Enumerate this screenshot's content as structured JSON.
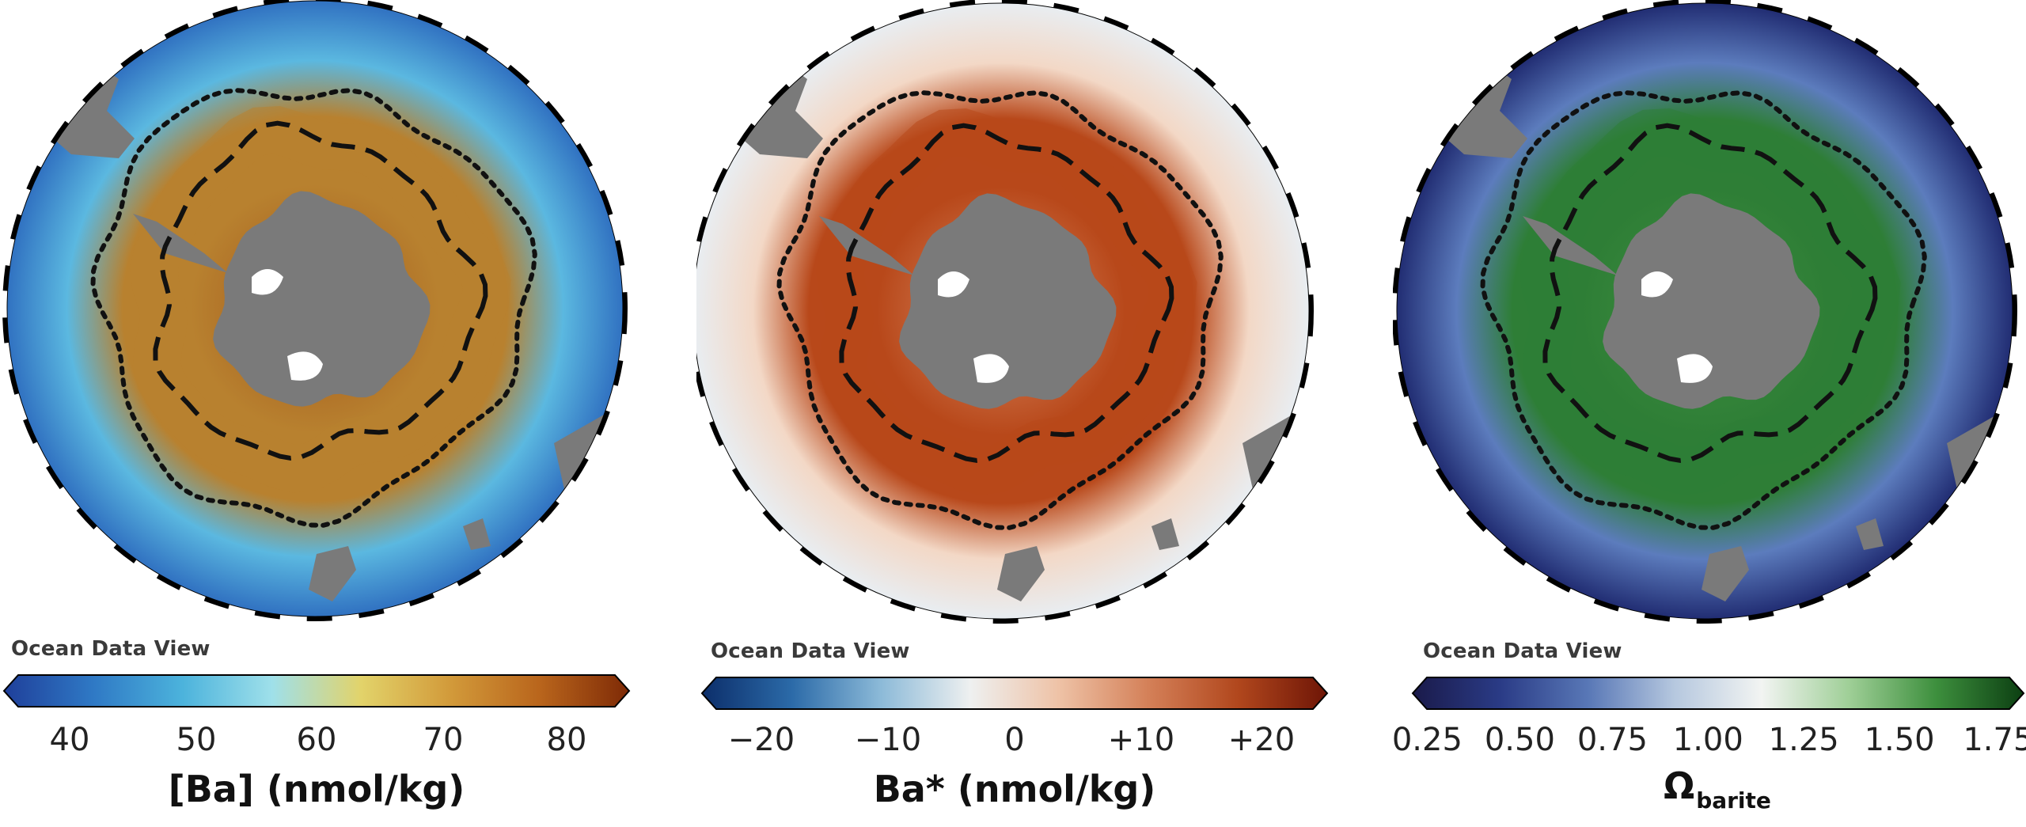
{
  "panels": [
    {
      "id": "ba",
      "watermark": "Ocean Data View",
      "colorbar": {
        "title": "[Ba] (nmol/kg)",
        "title_sub": "",
        "ticks": [
          "40",
          "50",
          "60",
          "70",
          "80"
        ],
        "colors": [
          "#1f3f9a",
          "#2f79c5",
          "#4cb3dc",
          "#9fe0ea",
          "#e2d36a",
          "#d29a3a",
          "#b9651c",
          "#7e2a06"
        ]
      },
      "map_colors": {
        "outer": "#2f6fc0",
        "mid": "#5bb8e0",
        "inner": "#b8812f",
        "core": "#a2561c"
      }
    },
    {
      "id": "bastar",
      "watermark": "Ocean Data View",
      "colorbar": {
        "title": "Ba* (nmol/kg)",
        "title_sub": "",
        "ticks": [
          "−20",
          "−10",
          "0",
          "+10",
          "+20"
        ],
        "colors": [
          "#0c2e6a",
          "#2b6aa8",
          "#8cbad8",
          "#eef0f0",
          "#eec2a6",
          "#d48058",
          "#b1471d",
          "#6e1506"
        ]
      },
      "map_colors": {
        "outer": "#e8eef3",
        "mid": "#f3d8c6",
        "inner": "#b8481a",
        "core": "#d88c66"
      }
    },
    {
      "id": "omega",
      "watermark": "Ocean Data View",
      "colorbar": {
        "title": "Ω",
        "title_sub": "barite",
        "ticks": [
          "0.25",
          "0.50",
          "0.75",
          "1.00",
          "1.25",
          "1.50",
          "1.75"
        ],
        "colors": [
          "#1a1a4a",
          "#2a3b86",
          "#5877b6",
          "#b6c8df",
          "#f2f4f2",
          "#9fcf97",
          "#3d8f3d",
          "#0c3f12"
        ]
      },
      "map_colors": {
        "outer": "#1f2a70",
        "mid": "#5c7cbd",
        "inner": "#2e7e36",
        "core": "#3f8e3f"
      }
    }
  ]
}
